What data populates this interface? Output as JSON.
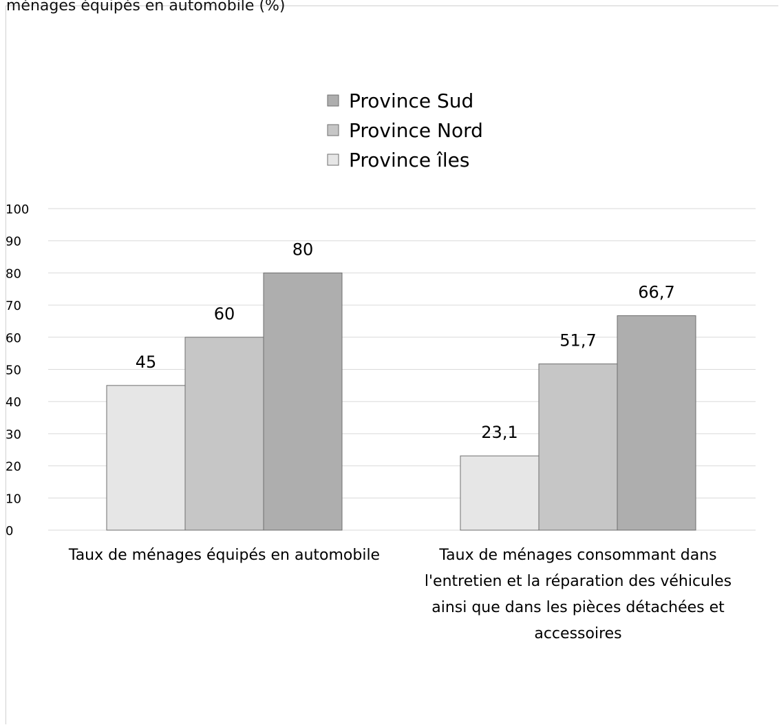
{
  "page": {
    "title_fragment": "ménages équipés en automobile (%)"
  },
  "colors": {
    "province_iles": "#e6e6e6",
    "province_nord": "#c6c6c6",
    "province_sud": "#aeaeae",
    "grid": "#d9d9d9",
    "bar_stroke": "#6e6e6e"
  },
  "chart_data": {
    "type": "bar",
    "title": "",
    "xlabel": "",
    "ylabel": "",
    "ylim": [
      0,
      100
    ],
    "yticks": [
      0,
      10,
      20,
      30,
      40,
      50,
      60,
      70,
      80,
      90,
      100
    ],
    "grid": true,
    "legend_position": "top-center",
    "legend_order": [
      "Province Sud",
      "Province Nord",
      "Province îles"
    ],
    "categories": [
      "Taux de ménages équipés en automobile",
      "Taux de ménages consommant dans l'entretien et la réparation des véhicules ainsi que dans les pièces détachées et accessoires"
    ],
    "category_lines": [
      [
        "Taux de ménages équipés en automobile"
      ],
      [
        "Taux de ménages consommant dans",
        "l'entretien et la réparation des véhicules",
        "ainsi que dans les pièces détachées et",
        "accessoires"
      ]
    ],
    "series": [
      {
        "name": "Province îles",
        "color_key": "province_iles",
        "values": [
          45,
          23.1
        ],
        "labels": [
          "45",
          "23,1"
        ]
      },
      {
        "name": "Province Nord",
        "color_key": "province_nord",
        "values": [
          60,
          51.7
        ],
        "labels": [
          "60",
          "51,7"
        ]
      },
      {
        "name": "Province Sud",
        "color_key": "province_sud",
        "values": [
          80,
          66.7
        ],
        "labels": [
          "80",
          "66,7"
        ]
      }
    ]
  }
}
